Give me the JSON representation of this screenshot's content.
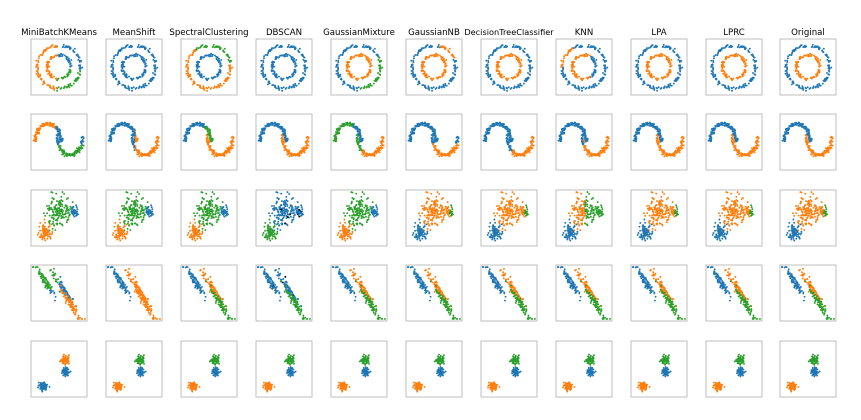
{
  "colors": {
    "c0": "#1f77b4",
    "c1": "#ff7f0e",
    "c2": "#2ca02c",
    "noise": "#000000",
    "frame": "#b0b0b0"
  },
  "chart_data": {
    "type": "scatter",
    "grid": false,
    "legend": "none",
    "columns": [
      "MiniBatchKMeans",
      "MeanShift",
      "SpectralClustering",
      "DBSCAN",
      "GaussianMixture",
      "GaussianNB",
      "DecisionTreeClassifier",
      "KNN",
      "LPA",
      "LPRC",
      "Original"
    ],
    "datasets": [
      "circles",
      "moons",
      "varied",
      "aniso",
      "blobs"
    ],
    "panels": [
      [
        "circles-km",
        "circles-all0",
        "circles-spec",
        "circles-all0",
        "circles-gmm",
        "circles-nb",
        "circles-clean",
        "circles-knn",
        "circles-clean",
        "circles-clean",
        "circles-clean"
      ],
      [
        "moons-km",
        "moons-ms",
        "moons-spec",
        "moons-clean",
        "moons-gmm",
        "moons-nb",
        "moons-dt",
        "moons-knn",
        "moons-clean",
        "moons-clean",
        "moons-clean"
      ],
      [
        "varied-3",
        "varied-3",
        "varied-3",
        "varied-db",
        "varied-3",
        "varied-2",
        "varied-2",
        "varied-knn",
        "varied-2",
        "varied-2",
        "varied-2"
      ],
      [
        "aniso-km",
        "aniso-2",
        "aniso-3",
        "aniso-db",
        "aniso-3",
        "aniso-3",
        "aniso-3",
        "aniso-3",
        "aniso-3",
        "aniso-3",
        "aniso-3"
      ],
      [
        "blobs-km",
        "blobs-3",
        "blobs-3",
        "blobs-3",
        "blobs-3",
        "blobs-3",
        "blobs-3",
        "blobs-3",
        "blobs-3",
        "blobs-3",
        "blobs-3"
      ]
    ]
  }
}
